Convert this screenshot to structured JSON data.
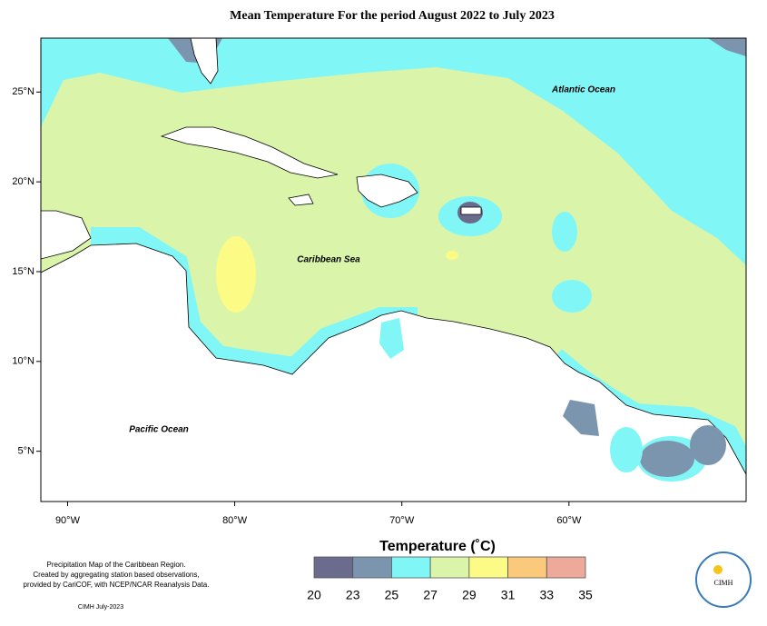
{
  "title": "Mean Temperature For the period August 2022 to July 2023",
  "map": {
    "xlim": [
      -91.6,
      -49.4
    ],
    "ylim": [
      2.2,
      28
    ],
    "xticks": [
      {
        "value": -90,
        "label": "90°W"
      },
      {
        "value": -80,
        "label": "80°W"
      },
      {
        "value": -70,
        "label": "70°W"
      },
      {
        "value": -60,
        "label": "60°W"
      }
    ],
    "yticks": [
      {
        "value": 25,
        "label": "25°N"
      },
      {
        "value": 20,
        "label": "20°N"
      },
      {
        "value": 15,
        "label": "15°N"
      },
      {
        "value": 10,
        "label": "10°N"
      },
      {
        "value": 5,
        "label": "5°N"
      }
    ],
    "labels": [
      "Atlantic Ocean",
      "Caribbean Sea",
      "Pacific Ocean"
    ]
  },
  "legend": {
    "title": "Temperature (˚C)",
    "ticks": [
      20,
      23,
      25,
      27,
      29,
      31,
      33,
      35
    ],
    "colors": [
      "#6b6b8e",
      "#7b95ae",
      "#80f6f6",
      "#daf5aa",
      "#fbfb86",
      "#fbc97c",
      "#eda999"
    ]
  },
  "notes": [
    "Precipitation Map of the Caribbean Region.",
    "Created by aggregating station based observations,",
    "provided by CariCOF, with NCEP/NCAR Reanalysis Data."
  ],
  "credit": "CIMH July-2023",
  "logo": "CIMH"
}
